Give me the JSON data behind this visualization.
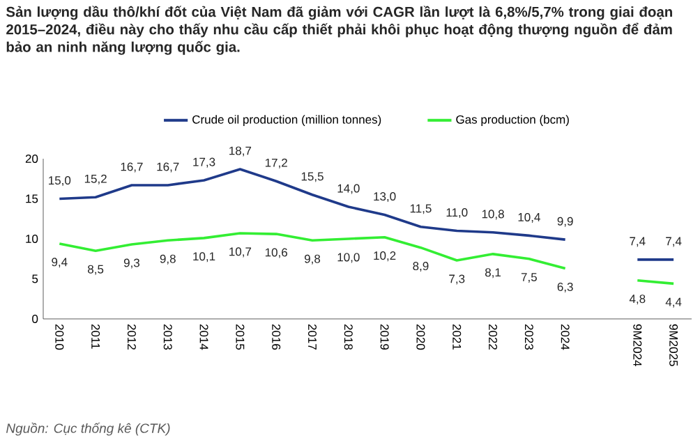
{
  "chart_data": {
    "type": "line",
    "title": "Sản lượng dầu thô/khí đốt của Việt Nam đã giảm với CAGR lần lượt là 6,8%/5,7% trong giai đoạn 2015–2024, điều này cho thấy nhu cầu cấp thiết phải khôi phục hoạt động thượng nguồn để đảm bảo an ninh năng lượng quốc gia.",
    "categories": [
      "2010",
      "2011",
      "2012",
      "2013",
      "2014",
      "2015",
      "2016",
      "2017",
      "2018",
      "2019",
      "2020",
      "2021",
      "2022",
      "2023",
      "2024",
      null,
      "9M2024",
      "9M2025"
    ],
    "series": [
      {
        "name": "Crude oil production (million tonnes)",
        "color": "#1f3a8a",
        "values": [
          15.0,
          15.2,
          16.7,
          16.7,
          17.3,
          18.7,
          17.2,
          15.5,
          14.0,
          13.0,
          11.5,
          11.0,
          10.8,
          10.4,
          9.9,
          null,
          7.4,
          7.4
        ],
        "value_labels": [
          "15,0",
          "15,2",
          "16,7",
          "16,7",
          "17,3",
          "18,7",
          "17,2",
          "15,5",
          "14,0",
          "13,0",
          "11,5",
          "11,0",
          "10,8",
          "10,4",
          "9,9",
          null,
          "7,4",
          "7,4"
        ]
      },
      {
        "name": "Gas production (bcm)",
        "color": "#33ee33",
        "values": [
          9.4,
          8.5,
          9.3,
          9.8,
          10.1,
          10.7,
          10.6,
          9.8,
          10.0,
          10.2,
          8.9,
          7.3,
          8.1,
          7.5,
          6.3,
          null,
          4.8,
          4.4
        ],
        "value_labels": [
          "9,4",
          "8,5",
          "9,3",
          "9,8",
          "10,1",
          "10,7",
          "10,6",
          "9,8",
          "10,0",
          "10,2",
          "8,9",
          "7,3",
          "8,1",
          "7,5",
          "6,3",
          null,
          "4,8",
          "4,4"
        ]
      }
    ],
    "ylim": [
      0,
      20
    ],
    "yticks": [
      0,
      5,
      10,
      15,
      20
    ],
    "legend": "top",
    "annotations": [
      "Nguồn: Cục thống kê (CTK)"
    ]
  }
}
